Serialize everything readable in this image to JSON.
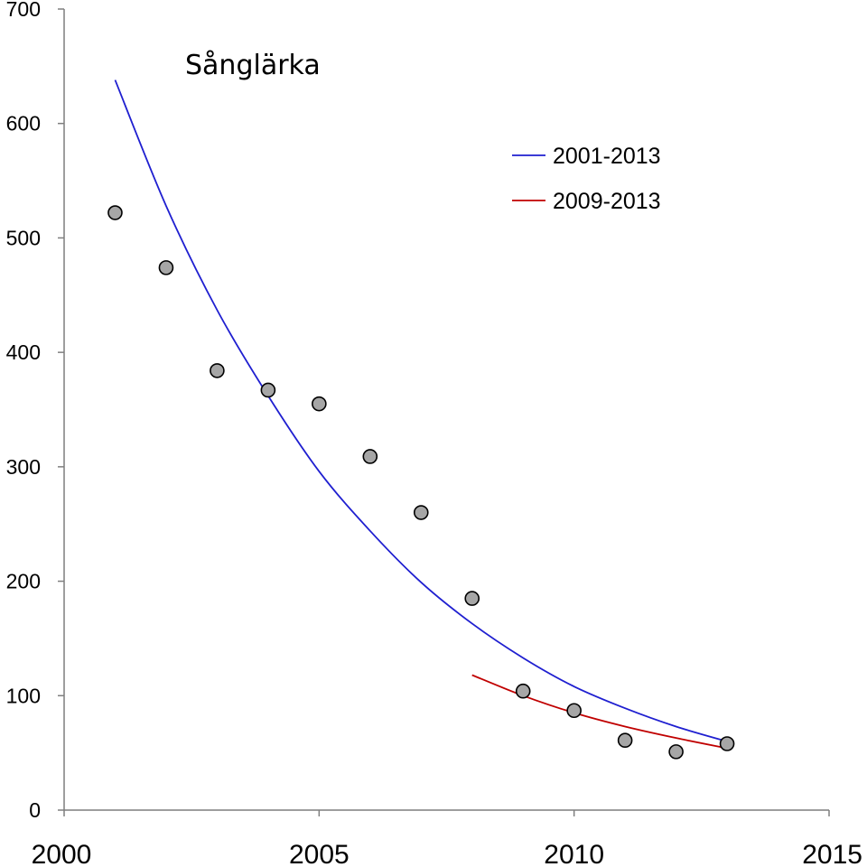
{
  "chart_data": {
    "type": "scatter",
    "title": "Sånglärka",
    "xlabel": "",
    "ylabel": "",
    "xlim": [
      2000,
      2015
    ],
    "ylim": [
      0,
      700
    ],
    "x_ticks": [
      2000,
      2005,
      2010,
      2015
    ],
    "y_ticks": [
      0,
      100,
      200,
      300,
      400,
      500,
      600,
      700
    ],
    "grid": false,
    "legend_position": "top-right",
    "points": {
      "x": [
        2001,
        2002,
        2003,
        2004,
        2005,
        2006,
        2007,
        2008,
        2009,
        2010,
        2011,
        2012,
        2013
      ],
      "y": [
        522,
        474,
        384,
        367,
        355,
        309,
        260,
        185,
        104,
        87,
        61,
        51,
        58
      ],
      "color": "#a6a6a6"
    },
    "series": [
      {
        "name": "2001-2013",
        "type": "line",
        "color": "#1f1fd0",
        "x": [
          2001,
          2002,
          2003,
          2004,
          2005,
          2006,
          2007,
          2008,
          2009,
          2010,
          2011,
          2012,
          2013
        ],
        "y": [
          638,
          528,
          437,
          362,
          296,
          244,
          199,
          163,
          133,
          108,
          89,
          73,
          60
        ]
      },
      {
        "name": "2009-2013",
        "type": "line",
        "color": "#c00000",
        "x": [
          2008,
          2009,
          2010,
          2011,
          2012,
          2013
        ],
        "y": [
          118,
          100,
          85,
          73,
          63,
          54
        ]
      }
    ]
  }
}
